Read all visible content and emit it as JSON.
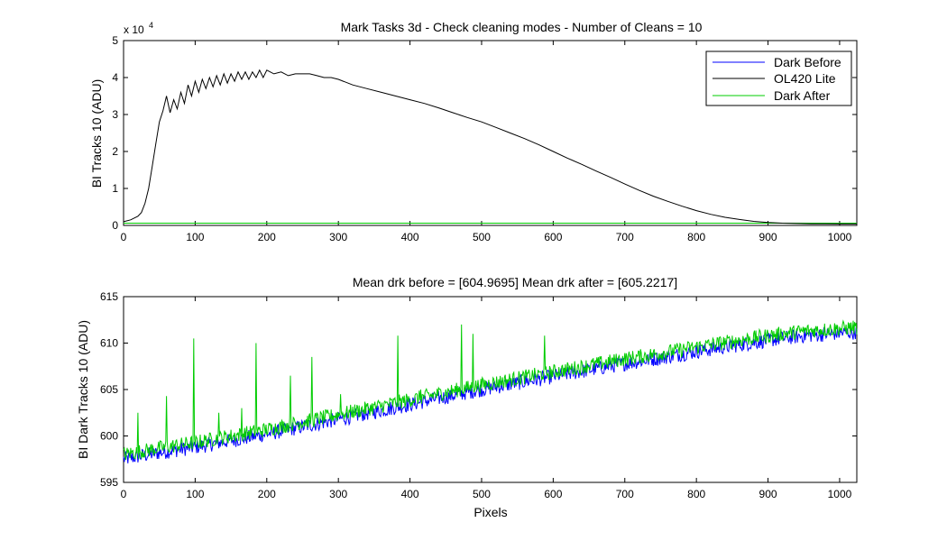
{
  "chart_data": [
    {
      "type": "line",
      "title": "Mark Tasks 3d - Check cleaning modes - Number of Cleans = 10",
      "xlabel": "",
      "ylabel": "BI Tracks 10 (ADU)",
      "xlim": [
        0,
        1024
      ],
      "ylim": [
        0,
        50000
      ],
      "x_ticks": [
        0,
        100,
        200,
        300,
        400,
        500,
        600,
        700,
        800,
        900,
        1000
      ],
      "y_ticks": [
        0,
        1,
        2,
        3,
        4,
        5
      ],
      "y_scale_label": "x 10",
      "y_scale_exponent": "4",
      "grid": false,
      "legend_position": "top-right",
      "series": [
        {
          "name": "Dark Before",
          "color": "#0000ff",
          "x": [
            0,
            100,
            200,
            300,
            400,
            500,
            600,
            700,
            800,
            900,
            1024
          ],
          "y": [
            598,
            598.5,
            600,
            602,
            604,
            605.5,
            607,
            608,
            609,
            610,
            611
          ]
        },
        {
          "name": "OL420 Lite",
          "color": "#000000",
          "x": [
            0,
            10,
            20,
            25,
            30,
            35,
            40,
            45,
            50,
            55,
            60,
            65,
            70,
            75,
            80,
            85,
            90,
            95,
            100,
            105,
            110,
            115,
            120,
            125,
            130,
            135,
            140,
            145,
            150,
            155,
            160,
            165,
            170,
            175,
            180,
            185,
            190,
            195,
            200,
            210,
            220,
            230,
            240,
            250,
            260,
            270,
            280,
            290,
            300,
            320,
            340,
            360,
            380,
            400,
            420,
            440,
            460,
            480,
            500,
            520,
            540,
            560,
            580,
            600,
            620,
            640,
            660,
            680,
            700,
            720,
            740,
            760,
            780,
            800,
            820,
            840,
            860,
            880,
            900,
            920,
            940,
            960,
            980,
            1000,
            1024
          ],
          "y": [
            1000,
            1500,
            2500,
            3500,
            6000,
            10000,
            16000,
            22000,
            28000,
            31000,
            35000,
            30500,
            34000,
            31500,
            36000,
            33000,
            38000,
            35000,
            39000,
            36000,
            39500,
            37000,
            40000,
            37500,
            40500,
            38000,
            41000,
            38500,
            41000,
            39000,
            41500,
            39500,
            41500,
            39500,
            41500,
            40000,
            42000,
            40000,
            42000,
            41000,
            41500,
            40500,
            41000,
            41000,
            41000,
            40500,
            40000,
            40000,
            39500,
            38000,
            37000,
            36000,
            35000,
            34000,
            33000,
            31800,
            30500,
            29200,
            28000,
            26500,
            25000,
            23500,
            21800,
            20000,
            18200,
            16500,
            14700,
            13000,
            11200,
            9500,
            7900,
            6500,
            5200,
            4000,
            3000,
            2200,
            1600,
            1100,
            800,
            600,
            500,
            450,
            420,
            400,
            400
          ]
        },
        {
          "name": "Dark After",
          "color": "#00cc00",
          "x": [
            0,
            100,
            200,
            300,
            400,
            500,
            600,
            700,
            800,
            900,
            1024
          ],
          "y": [
            599,
            599,
            600.5,
            602.5,
            604.5,
            606,
            607.5,
            608.5,
            609.5,
            610.5,
            611.5
          ]
        }
      ]
    },
    {
      "type": "line",
      "title": "Mean drk before = [604.9695]    Mean drk after = [605.2217]",
      "xlabel": "Pixels",
      "ylabel": "BI Dark Tracks 10 (ADU)",
      "xlim": [
        0,
        1024
      ],
      "ylim": [
        595,
        615
      ],
      "x_ticks": [
        0,
        100,
        200,
        300,
        400,
        500,
        600,
        700,
        800,
        900,
        1000
      ],
      "y_ticks": [
        595,
        600,
        605,
        610,
        615
      ],
      "grid": false,
      "series": [
        {
          "color": "#0000ff",
          "x": [
            0,
            50,
            100,
            150,
            200,
            250,
            300,
            350,
            400,
            450,
            500,
            550,
            600,
            650,
            700,
            750,
            800,
            850,
            900,
            950,
            1024
          ],
          "y": [
            597.5,
            598.2,
            598.8,
            599.5,
            600.2,
            601,
            601.8,
            602.6,
            603.4,
            604.2,
            605,
            605.7,
            606.4,
            607.1,
            607.8,
            608.4,
            609.1,
            609.7,
            610.3,
            610.8,
            611.2
          ],
          "noise_amplitude": 0.8
        },
        {
          "color": "#00cc00",
          "x": [
            0,
            50,
            100,
            150,
            200,
            250,
            300,
            350,
            400,
            450,
            500,
            550,
            600,
            650,
            700,
            750,
            800,
            850,
            900,
            950,
            1024
          ],
          "y": [
            598,
            598.7,
            599.3,
            600,
            600.7,
            601.5,
            602.3,
            603.1,
            603.9,
            604.7,
            605.5,
            606.2,
            606.9,
            607.6,
            608.3,
            608.9,
            609.6,
            610.2,
            610.8,
            611.3,
            611.7
          ],
          "noise_amplitude": 0.8,
          "spikes": [
            {
              "x": 20,
              "y": 602.5
            },
            {
              "x": 60,
              "y": 604.3
            },
            {
              "x": 98,
              "y": 610.5
            },
            {
              "x": 133,
              "y": 602.5
            },
            {
              "x": 165,
              "y": 603
            },
            {
              "x": 185,
              "y": 610
            },
            {
              "x": 233,
              "y": 606.5
            },
            {
              "x": 263,
              "y": 608.5
            },
            {
              "x": 303,
              "y": 604.5
            },
            {
              "x": 383,
              "y": 610.8
            },
            {
              "x": 415,
              "y": 605
            },
            {
              "x": 472,
              "y": 612
            },
            {
              "x": 488,
              "y": 611
            },
            {
              "x": 588,
              "y": 610.8
            }
          ]
        }
      ]
    }
  ]
}
